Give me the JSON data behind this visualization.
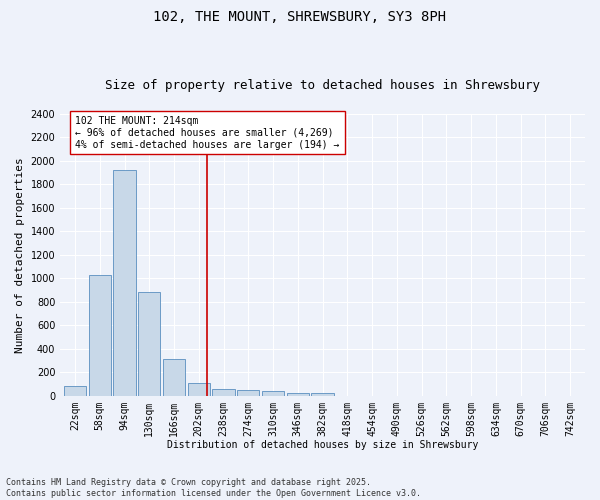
{
  "title": "102, THE MOUNT, SHREWSBURY, SY3 8PH",
  "subtitle": "Size of property relative to detached houses in Shrewsbury",
  "xlabel": "Distribution of detached houses by size in Shrewsbury",
  "ylabel": "Number of detached properties",
  "bin_labels": [
    "22sqm",
    "58sqm",
    "94sqm",
    "130sqm",
    "166sqm",
    "202sqm",
    "238sqm",
    "274sqm",
    "310sqm",
    "346sqm",
    "382sqm",
    "418sqm",
    "454sqm",
    "490sqm",
    "526sqm",
    "562sqm",
    "598sqm",
    "634sqm",
    "670sqm",
    "706sqm",
    "742sqm"
  ],
  "bar_values": [
    85,
    1030,
    1920,
    880,
    315,
    110,
    55,
    45,
    40,
    20,
    20,
    0,
    0,
    0,
    0,
    0,
    0,
    0,
    0,
    0,
    0
  ],
  "bar_color": "#c8d8e8",
  "bar_edge_color": "#5a8fc0",
  "vline_color": "#cc0000",
  "annotation_text": "102 THE MOUNT: 214sqm\n← 96% of detached houses are smaller (4,269)\n4% of semi-detached houses are larger (194) →",
  "annotation_box_color": "#ffffff",
  "annotation_box_edge_color": "#cc0000",
  "ylim": [
    0,
    2400
  ],
  "yticks": [
    0,
    200,
    400,
    600,
    800,
    1000,
    1200,
    1400,
    1600,
    1800,
    2000,
    2200,
    2400
  ],
  "background_color": "#eef2fa",
  "grid_color": "#ffffff",
  "footer_text": "Contains HM Land Registry data © Crown copyright and database right 2025.\nContains public sector information licensed under the Open Government Licence v3.0.",
  "title_fontsize": 10,
  "subtitle_fontsize": 9,
  "annotation_fontsize": 7,
  "footer_fontsize": 6,
  "axis_fontsize": 7,
  "tick_fontsize": 7,
  "ylabel_fontsize": 8
}
